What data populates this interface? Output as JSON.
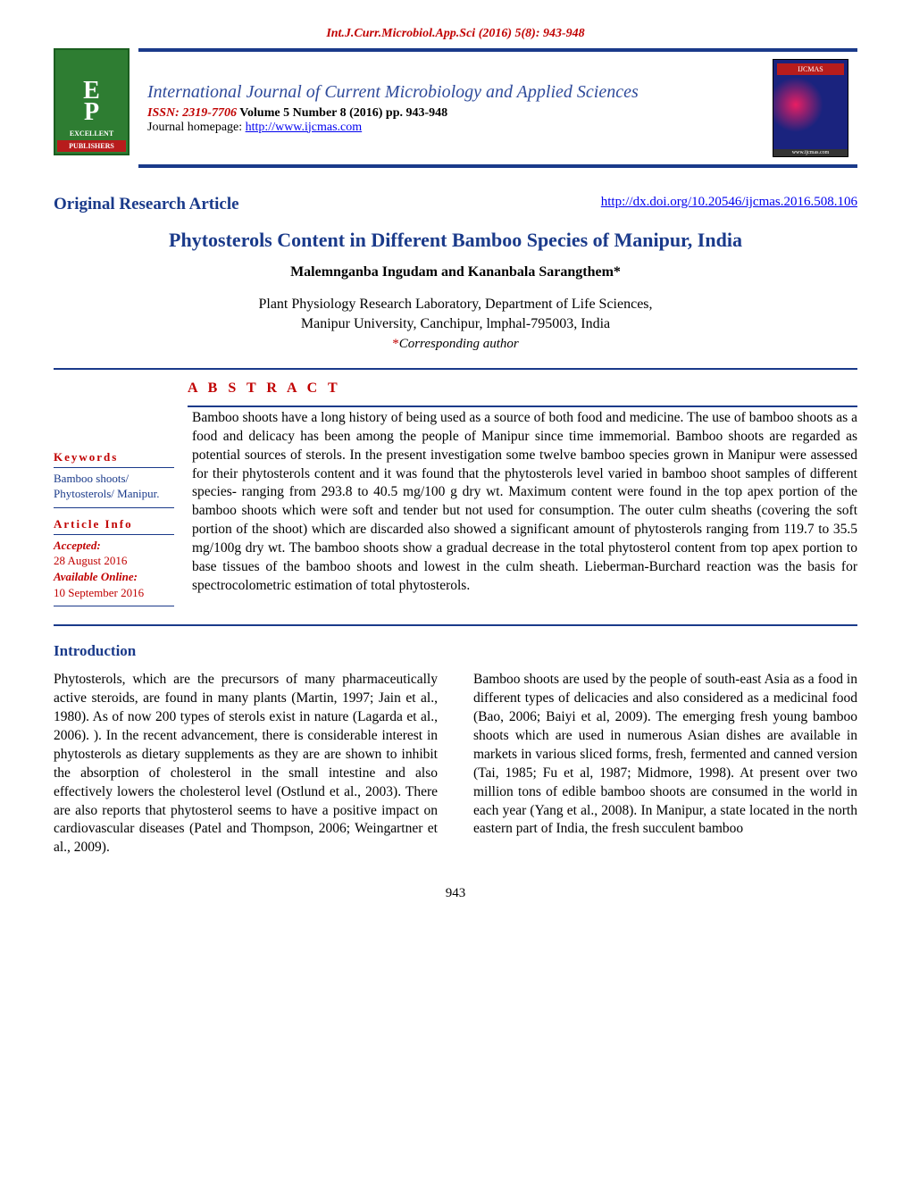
{
  "top_citation": "Int.J.Curr.Microbiol.App.Sci (2016) 5(8): 943-948",
  "publisher_logo": {
    "initials_top": "E",
    "initials_bottom": "P",
    "line1": "EXCELLENT",
    "line2": "PUBLISHERS"
  },
  "header": {
    "journal_title": "International Journal of Current Microbiology and Applied Sciences",
    "issn_prefix": "ISSN: 2319-7706",
    "issue_info": " Volume 5 Number 8 (2016) pp. 943-948",
    "homepage_label": "Journal homepage: ",
    "homepage_url": "http://www.ijcmas.com"
  },
  "cover": {
    "title": "IJCMAS",
    "footer": "www.ijcmas.com"
  },
  "article_type": "Original Research Article",
  "doi": "http://dx.doi.org/10.20546/ijcmas.2016.508.106",
  "title": "Phytosterols Content in Different Bamboo Species of Manipur, India",
  "authors": "Malemnganba Ingudam and Kananbala Sarangthem*",
  "affiliation_line1": "Plant Physiology Research Laboratory, Department of Life Sciences,",
  "affiliation_line2": "Manipur University, Canchipur, lmphal-795003, India",
  "corresponding_label": "Corresponding author",
  "abstract_label": "A B S T R A C T",
  "sidebar": {
    "keywords_label": "Keywords",
    "keywords_text": "Bamboo shoots/ Phytosterols/ Manipur.",
    "article_info_label": "Article Info",
    "accepted_label": "Accepted:",
    "accepted_date": "28 August 2016",
    "available_label": "Available Online:",
    "available_date": "10 September 2016"
  },
  "abstract_text": "Bamboo shoots have a long history of being used as a source of both food and medicine. The use of bamboo shoots as a food and delicacy has been among the people of Manipur since time immemorial. Bamboo shoots are regarded as potential sources of sterols. In the present investigation some twelve bamboo species grown in Manipur were assessed for their phytosterols content and it was found that the phytosterols level varied in bamboo shoot samples of different species- ranging from 293.8 to 40.5 mg/100 g dry wt. Maximum content were found in the top apex portion of the bamboo shoots which were soft and tender but not used for consumption.  The outer culm sheaths (covering the soft portion of the shoot) which are discarded also showed a significant amount of phytosterols ranging from 119.7 to 35.5 mg/100g dry wt.  The bamboo shoots show a gradual decrease in the total phytosterol content from top apex portion to base tissues of the bamboo shoots and lowest in the culm sheath. Lieberman-Burchard reaction was the basis for spectrocolometric estimation of total phytosterols.",
  "intro_heading": "Introduction",
  "body": {
    "para1": "Phytosterols, which are the precursors of many pharmaceutically active steroids, are found in many plants (Martin, 1997; Jain et al., 1980).  As of now 200 types of sterols exist in nature (Lagarda et al., 2006). ). In the recent advancement, there is considerable interest in phytosterols as dietary supplements as they are are shown to inhibit the absorption of cholesterol in the small intestine and also effectively lowers the cholesterol level (Ostlund et al., 2003). There are also reports that phytosterol seems to have a positive impact on cardiovascular diseases (Patel and Thompson, 2006; Weingartner et al., 2009).",
    "para2": "Bamboo shoots are used by the people of south-east Asia as a food in different types of delicacies and also considered as a medicinal food (Bao, 2006; Baiyi et al, 2009). The emerging fresh young bamboo shoots which are used in numerous Asian dishes are available in markets in various sliced forms, fresh, fermented and canned version (Tai, 1985; Fu et al, 1987; Midmore, 1998). At present over two million tons of edible bamboo shoots are consumed in the world in each year (Yang et al., 2008). In Manipur, a state located in the north eastern part of India, the fresh succulent bamboo"
  },
  "page_number": "943"
}
